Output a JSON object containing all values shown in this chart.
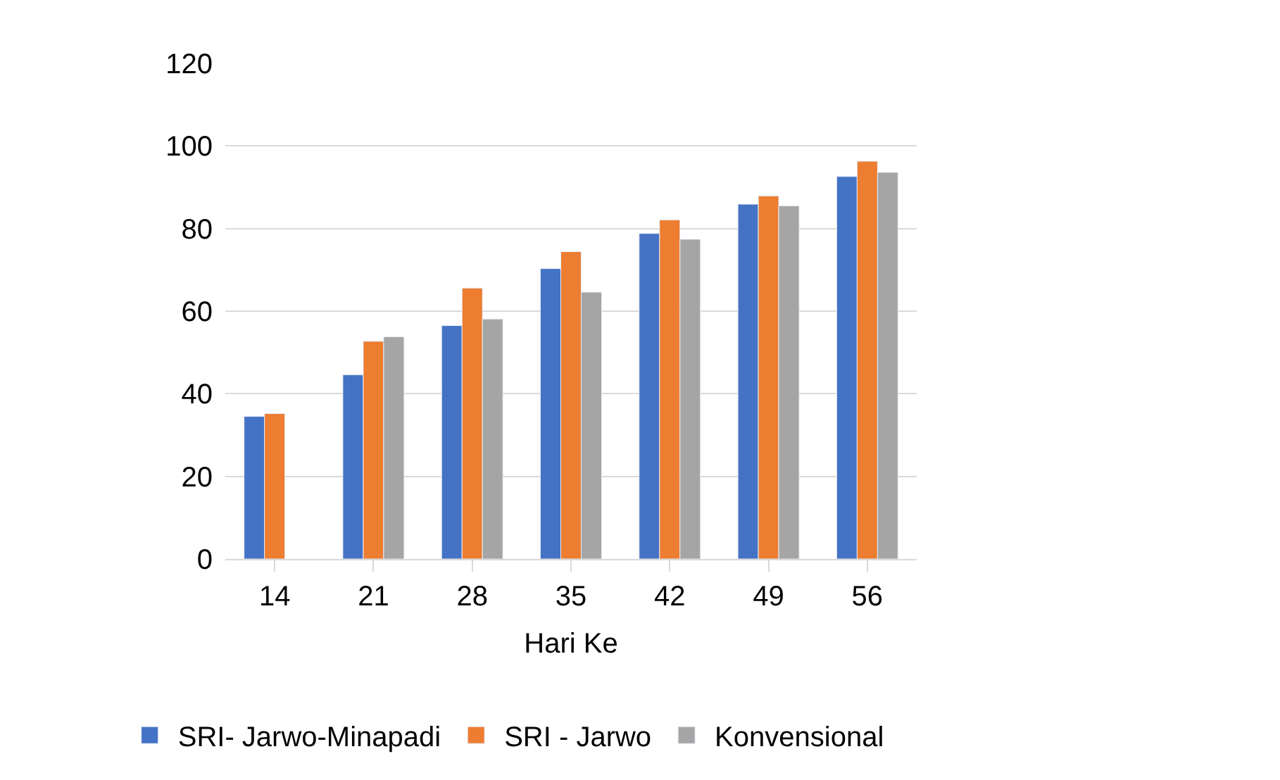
{
  "chart_data": {
    "type": "bar",
    "xlabel": "Hari Ke",
    "categories": [
      "14",
      "21",
      "28",
      "35",
      "42",
      "49",
      "56"
    ],
    "series": [
      {
        "name": "SRI- Jarwo-Minapadi",
        "color": "#4472c4",
        "values": [
          34.5,
          44.6,
          56.5,
          70.3,
          78.8,
          85.9,
          92.6
        ]
      },
      {
        "name": "SRI - Jarwo",
        "color": "#ed7d31",
        "values": [
          35.2,
          52.7,
          65.6,
          74.4,
          82.1,
          87.9,
          96.3
        ]
      },
      {
        "name": "Konvensional",
        "color": "#a5a5a5",
        "values": [
          null,
          53.8,
          58.1,
          64.6,
          77.4,
          85.5,
          93.6
        ]
      }
    ],
    "ylim": [
      0,
      120
    ],
    "yticks": [
      0,
      20,
      40,
      60,
      {
        "value": 80,
        "label": "80"
      },
      100,
      120
    ],
    "grid": "y",
    "legend": "bottom"
  }
}
